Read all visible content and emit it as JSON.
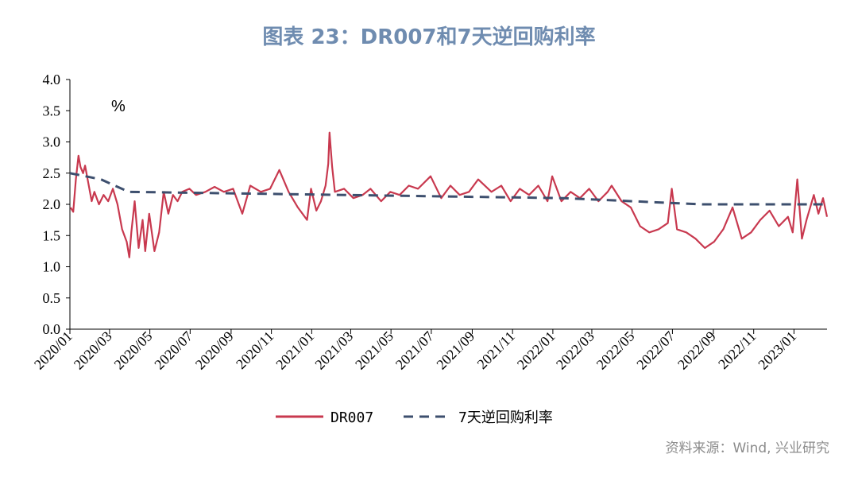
{
  "title": "图表 23：DR007和7天逆回购利率",
  "source": "资料来源：Wind, 兴业研究",
  "chart_data": {
    "type": "line",
    "title": "图表 23：DR007和7天逆回购利率",
    "unit": "%",
    "ylim": [
      0,
      4
    ],
    "yticks": [
      "0.0",
      "0.5",
      "1.0",
      "1.5",
      "2.0",
      "2.5",
      "3.0",
      "3.5",
      "4.0"
    ],
    "xlim": [
      "2020-01-01",
      "2023-02-20"
    ],
    "xticks": [
      "2020/01",
      "2020/03",
      "2020/05",
      "2020/07",
      "2020/09",
      "2020/11",
      "2021/01",
      "2021/03",
      "2021/05",
      "2021/07",
      "2021/09",
      "2021/11",
      "2022/01",
      "2022/03",
      "2022/05",
      "2022/07",
      "2022/09",
      "2022/11",
      "2023/01"
    ],
    "grid": false,
    "legend_position": "bottom",
    "series": [
      {
        "name": "DR007",
        "color": "#c8394f",
        "style": "solid",
        "x": [
          "2020-01-02",
          "2020-01-06",
          "2020-01-10",
          "2020-01-14",
          "2020-01-17",
          "2020-01-21",
          "2020-01-24",
          "2020-02-03",
          "2020-02-07",
          "2020-02-14",
          "2020-02-21",
          "2020-02-28",
          "2020-03-06",
          "2020-03-13",
          "2020-03-20",
          "2020-03-27",
          "2020-03-31",
          "2020-04-03",
          "2020-04-08",
          "2020-04-14",
          "2020-04-20",
          "2020-04-24",
          "2020-04-30",
          "2020-05-08",
          "2020-05-15",
          "2020-05-22",
          "2020-05-29",
          "2020-06-05",
          "2020-06-12",
          "2020-06-19",
          "2020-06-30",
          "2020-07-10",
          "2020-07-24",
          "2020-08-07",
          "2020-08-21",
          "2020-09-04",
          "2020-09-18",
          "2020-09-30",
          "2020-10-16",
          "2020-10-30",
          "2020-11-13",
          "2020-11-27",
          "2020-12-11",
          "2020-12-25",
          "2020-12-31",
          "2021-01-08",
          "2021-01-15",
          "2021-01-22",
          "2021-01-26",
          "2021-01-28",
          "2021-02-01",
          "2021-02-05",
          "2021-02-19",
          "2021-03-05",
          "2021-03-19",
          "2021-03-31",
          "2021-04-16",
          "2021-04-30",
          "2021-05-14",
          "2021-05-28",
          "2021-06-11",
          "2021-06-30",
          "2021-07-16",
          "2021-07-30",
          "2021-08-13",
          "2021-08-27",
          "2021-09-10",
          "2021-09-30",
          "2021-10-15",
          "2021-10-29",
          "2021-11-12",
          "2021-11-26",
          "2021-12-10",
          "2021-12-24",
          "2021-12-31",
          "2022-01-14",
          "2022-01-28",
          "2022-02-11",
          "2022-02-25",
          "2022-03-11",
          "2022-03-25",
          "2022-03-31",
          "2022-04-15",
          "2022-04-29",
          "2022-05-13",
          "2022-05-27",
          "2022-06-10",
          "2022-06-24",
          "2022-06-30",
          "2022-07-08",
          "2022-07-22",
          "2022-08-05",
          "2022-08-19",
          "2022-09-02",
          "2022-09-16",
          "2022-09-30",
          "2022-10-14",
          "2022-10-28",
          "2022-11-11",
          "2022-11-25",
          "2022-12-09",
          "2022-12-23",
          "2022-12-30",
          "2023-01-06",
          "2023-01-13",
          "2023-01-20",
          "2023-01-31",
          "2023-02-07",
          "2023-02-14",
          "2023-02-20"
        ],
        "values": [
          1.95,
          1.88,
          2.4,
          2.78,
          2.6,
          2.5,
          2.62,
          2.05,
          2.2,
          2.0,
          2.15,
          2.05,
          2.25,
          2.0,
          1.6,
          1.4,
          1.15,
          1.55,
          2.05,
          1.3,
          1.75,
          1.25,
          1.85,
          1.25,
          1.55,
          2.2,
          1.85,
          2.15,
          2.05,
          2.2,
          2.25,
          2.15,
          2.2,
          2.28,
          2.2,
          2.25,
          1.85,
          2.3,
          2.2,
          2.25,
          2.55,
          2.2,
          1.95,
          1.75,
          2.25,
          1.9,
          2.05,
          2.3,
          2.65,
          3.15,
          2.6,
          2.2,
          2.25,
          2.1,
          2.15,
          2.25,
          2.05,
          2.2,
          2.15,
          2.3,
          2.25,
          2.45,
          2.1,
          2.3,
          2.15,
          2.2,
          2.4,
          2.2,
          2.3,
          2.05,
          2.25,
          2.15,
          2.3,
          2.05,
          2.45,
          2.05,
          2.2,
          2.1,
          2.25,
          2.05,
          2.2,
          2.3,
          2.05,
          1.95,
          1.65,
          1.55,
          1.6,
          1.7,
          2.25,
          1.6,
          1.55,
          1.45,
          1.3,
          1.4,
          1.6,
          1.95,
          1.45,
          1.55,
          1.75,
          1.9,
          1.65,
          1.8,
          1.55,
          2.4,
          1.45,
          1.75,
          2.15,
          1.85,
          2.1,
          1.8
        ]
      },
      {
        "name": "7天逆回购利率",
        "color": "#3d4f6e",
        "style": "dashed",
        "x": [
          "2020-01-01",
          "2020-02-17",
          "2020-03-30",
          "2022-01-17",
          "2022-08-15",
          "2023-02-20"
        ],
        "values": [
          2.5,
          2.4,
          2.2,
          2.1,
          2.0,
          2.0
        ]
      }
    ]
  }
}
